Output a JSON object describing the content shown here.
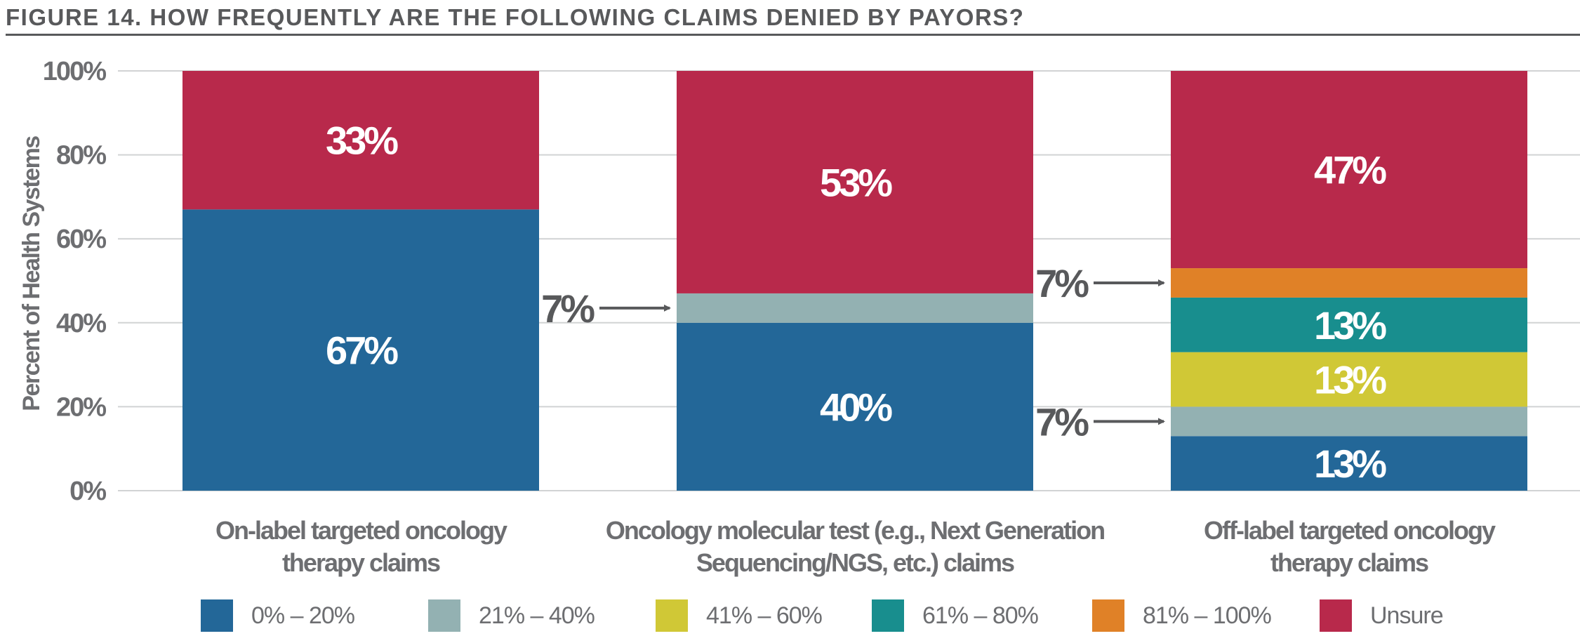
{
  "title": "FIGURE 14. HOW FREQUENTLY ARE THE FOLLOWING CLAIMS DENIED BY PAYORS?",
  "chart_data": {
    "type": "bar",
    "stacked": true,
    "ylabel": "Percent of Health Systems",
    "ylim": [
      0,
      100
    ],
    "yticks": [
      "0%",
      "20%",
      "40%",
      "60%",
      "80%",
      "100%"
    ],
    "grid": true,
    "legend_position": "bottom",
    "categories": [
      [
        "On-label targeted oncology",
        "therapy claims"
      ],
      [
        "Oncology molecular test (e.g., Next Generation",
        "Sequencing/NGS, etc.) claims"
      ],
      [
        "Off-label targeted oncology",
        "therapy claims"
      ]
    ],
    "series": [
      {
        "name": "0% – 20%",
        "color": "#236798",
        "values": [
          67,
          40,
          13
        ],
        "labels": [
          "67%",
          "40%",
          "13%"
        ]
      },
      {
        "name": "21% – 40%",
        "color": "#93b1b2",
        "values": [
          0,
          7,
          7
        ],
        "labels": [
          "",
          "7%",
          "7%"
        ]
      },
      {
        "name": "41% – 60%",
        "color": "#d0c836",
        "values": [
          0,
          0,
          13
        ],
        "labels": [
          "",
          "",
          "13%"
        ]
      },
      {
        "name": "61% – 80%",
        "color": "#188e8e",
        "values": [
          0,
          0,
          13
        ],
        "labels": [
          "",
          "",
          "13%"
        ]
      },
      {
        "name": "81% – 100%",
        "color": "#e08127",
        "values": [
          0,
          0,
          7
        ],
        "labels": [
          "",
          "",
          "7%"
        ]
      },
      {
        "name": "Unsure",
        "color": "#b8294b",
        "values": [
          33,
          53,
          47
        ],
        "labels": [
          "33%",
          "53%",
          "47%"
        ]
      }
    ],
    "callouts": [
      {
        "category": 1,
        "series": 1,
        "text": "7%"
      },
      {
        "category": 2,
        "series": 1,
        "text": "7%"
      },
      {
        "category": 2,
        "series": 4,
        "text": "7%"
      }
    ]
  },
  "colors": {
    "axis_text": "#6d6e71",
    "grid": "#d1d3d4",
    "title": "#58595b",
    "arrow": "#58595b",
    "callout_text": "#58595b"
  }
}
